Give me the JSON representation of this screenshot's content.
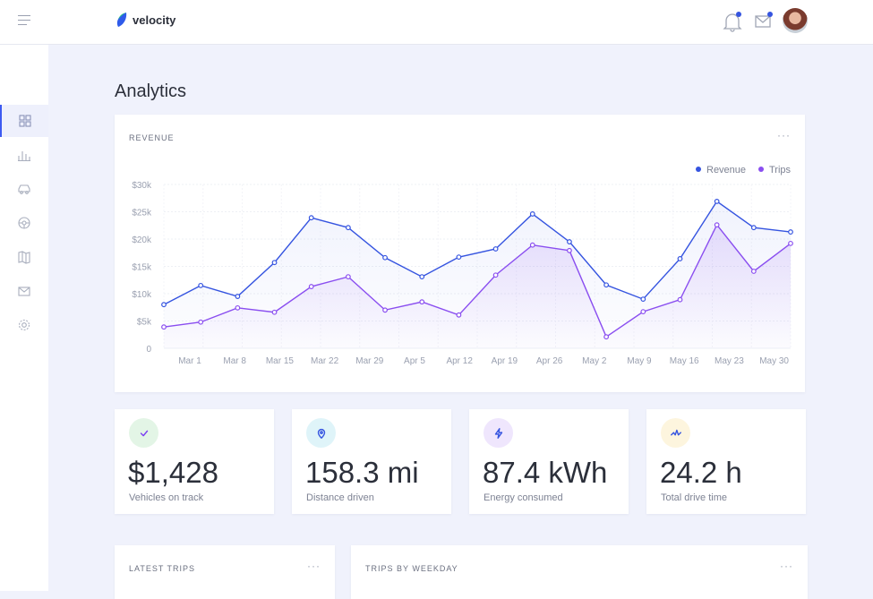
{
  "header": {
    "brand": "velocity",
    "menu_icon": "hamburger-icon",
    "notifications_badge": true,
    "messages_badge": true
  },
  "sidebar": {
    "items": [
      {
        "icon": "dashboard-grid-icon",
        "active": true
      },
      {
        "icon": "bar-chart-icon"
      },
      {
        "icon": "car-icon"
      },
      {
        "icon": "steering-icon"
      },
      {
        "icon": "map-icon"
      },
      {
        "icon": "mail-icon"
      },
      {
        "icon": "gear-icon"
      }
    ]
  },
  "page": {
    "title": "Analytics"
  },
  "revenue_card": {
    "title": "REVENUE",
    "menu": "···"
  },
  "chart_data": {
    "type": "line",
    "categories_ticks": [
      "Mar 1",
      "Mar 8",
      "Mar 15",
      "Mar 22",
      "Mar 29",
      "Apr 5",
      "Apr 12",
      "Apr 19",
      "Apr 26",
      "May 2",
      "May 9",
      "May 16",
      "May 23",
      "May 30"
    ],
    "y_ticks": [
      "0",
      "$5k",
      "$10k",
      "$15k",
      "$20k",
      "$25k",
      "$30k"
    ],
    "ylim": [
      0,
      30000
    ],
    "grid": true,
    "legend": "top-right",
    "series": [
      {
        "name": "Revenue",
        "color": "#3554e0",
        "values": [
          8000,
          11500,
          9500,
          15700,
          23900,
          22100,
          16600,
          13100,
          16700,
          18200,
          24600,
          19500,
          11600,
          9000,
          16400,
          26900,
          22100,
          21300
        ]
      },
      {
        "name": "Trips",
        "color": "#8a4ef0",
        "values": [
          3900,
          4800,
          7400,
          6600,
          11300,
          13100,
          7000,
          8500,
          6100,
          13400,
          18900,
          17900,
          2100,
          6700,
          8900,
          22600,
          14100,
          19200
        ]
      }
    ]
  },
  "stats": [
    {
      "icon": "check-icon",
      "bg": "#e3f5e6",
      "color": "#7b3ff2",
      "value": "$1,428",
      "label": "Vehicles on track"
    },
    {
      "icon": "map-pin-icon",
      "bg": "#dff4f9",
      "color": "#3554e0",
      "value": "158.3 mi",
      "label": "Distance driven"
    },
    {
      "icon": "lightning-icon",
      "bg": "#efe6fd",
      "color": "#3554e0",
      "value": "87.4 kWh",
      "label": "Energy consumed"
    },
    {
      "icon": "activity-icon",
      "bg": "#fdf5de",
      "color": "#3554e0",
      "value": "24.2 h",
      "label": "Total drive time"
    }
  ],
  "latest_trips": {
    "title": "LATEST TRIPS",
    "menu": "···"
  },
  "trips_by_weekday": {
    "title": "TRIPS BY WEEKDAY",
    "menu": "···"
  }
}
